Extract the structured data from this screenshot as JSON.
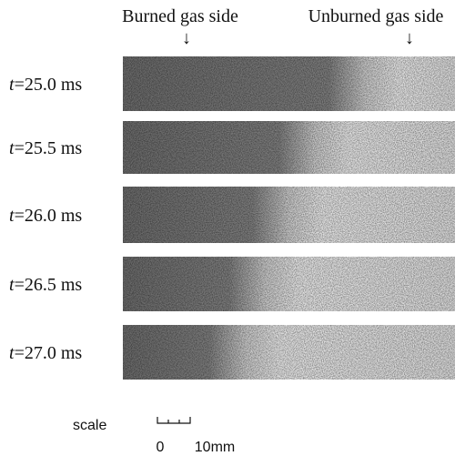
{
  "header": {
    "burned": "Burned gas side",
    "burned_arrow": "↓",
    "unburned": "Unburned gas side",
    "unburned_arrow": "↓"
  },
  "rows": [
    {
      "var": "t",
      "rest": "=25.0 ms"
    },
    {
      "var": "t",
      "rest": "=25.5 ms"
    },
    {
      "var": "t",
      "rest": "=26.0 ms"
    },
    {
      "var": "t",
      "rest": "=26.5 ms"
    },
    {
      "var": "t",
      "rest": "=27.0 ms"
    }
  ],
  "scale": {
    "label": "scale",
    "zero": "0",
    "length": "10mm"
  }
}
